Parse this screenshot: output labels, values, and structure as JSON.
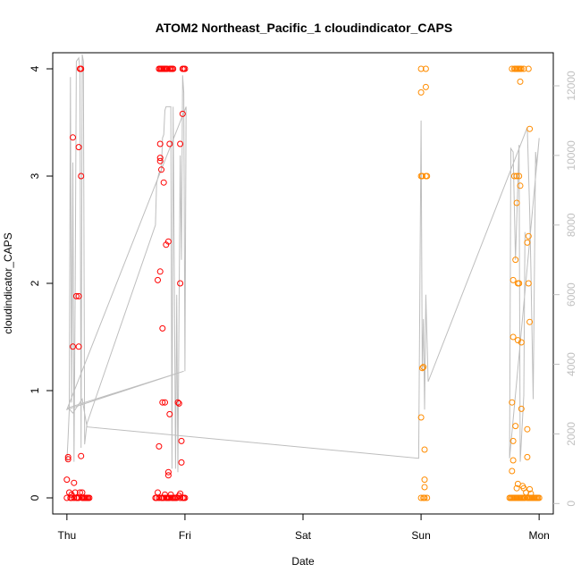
{
  "chart_data": {
    "type": "scatter",
    "title": "ATOM2 Northeast_Pacific_1 cloudindicator_CAPS",
    "xlabel": "Date",
    "ylabel": "cloudindicator_CAPS",
    "x_ticks": [
      "Thu",
      "Fri",
      "Sat",
      "Sun",
      "Mon"
    ],
    "x_range": [
      -0.12,
      4.12
    ],
    "y_ticks": [
      "0",
      "1",
      "2",
      "3",
      "4"
    ],
    "y_range": [
      -0.15,
      4.15
    ],
    "y2_ticks": [
      "0",
      "2000",
      "4000",
      "6000",
      "8000",
      "10000",
      "12000"
    ],
    "y2_range": [
      -300,
      12950
    ],
    "colors": {
      "series_a": "#ff0000",
      "series_b": "#ff8c00",
      "line": "#bebebe",
      "axis": "#000000",
      "right_axis": "#c0c0c0"
    },
    "grid": false,
    "series": [
      {
        "color": "#ff0000",
        "points": [
          [
            0.0,
            0.0
          ],
          [
            0.0,
            0.17
          ],
          [
            0.01,
            0.38
          ],
          [
            0.01,
            0.36
          ],
          [
            0.02,
            0.05
          ],
          [
            0.03,
            0.0
          ],
          [
            0.04,
            0.0
          ],
          [
            0.04,
            0.03
          ],
          [
            0.05,
            3.36
          ],
          [
            0.05,
            1.41
          ],
          [
            0.06,
            0.14
          ],
          [
            0.07,
            0.05
          ],
          [
            0.08,
            1.88
          ],
          [
            0.09,
            0.0
          ],
          [
            0.1,
            0.0
          ],
          [
            0.1,
            1.88
          ],
          [
            0.1,
            3.27
          ],
          [
            0.1,
            1.41
          ],
          [
            0.11,
            4.0
          ],
          [
            0.12,
            4.0
          ],
          [
            0.12,
            0.39
          ],
          [
            0.12,
            3.0
          ],
          [
            0.13,
            0.0
          ],
          [
            0.14,
            0.0
          ],
          [
            0.15,
            0.0
          ],
          [
            0.16,
            0.0
          ],
          [
            0.17,
            0.0
          ],
          [
            0.18,
            0.0
          ],
          [
            0.19,
            0.0
          ],
          [
            0.11,
            0.05
          ],
          [
            0.13,
            0.05
          ],
          [
            0.06,
            0.0
          ],
          [
            0.08,
            0.0
          ],
          [
            0.75,
            0.0
          ],
          [
            0.76,
            0.0
          ],
          [
            0.77,
            2.03
          ],
          [
            0.77,
            0.05
          ],
          [
            0.78,
            4.0
          ],
          [
            0.78,
            0.48
          ],
          [
            0.79,
            2.11
          ],
          [
            0.79,
            3.3
          ],
          [
            0.79,
            3.17
          ],
          [
            0.79,
            3.14
          ],
          [
            0.8,
            3.06
          ],
          [
            0.8,
            0.0
          ],
          [
            0.81,
            0.89
          ],
          [
            0.81,
            1.58
          ],
          [
            0.81,
            0.0
          ],
          [
            0.82,
            4.0
          ],
          [
            0.82,
            0.0
          ],
          [
            0.82,
            2.94
          ],
          [
            0.83,
            0.03
          ],
          [
            0.83,
            0.89
          ],
          [
            0.84,
            2.36
          ],
          [
            0.84,
            0.0
          ],
          [
            0.85,
            0.0
          ],
          [
            0.86,
            0.0
          ],
          [
            0.86,
            2.39
          ],
          [
            0.86,
            0.24
          ],
          [
            0.86,
            0.21
          ],
          [
            0.87,
            0.0
          ],
          [
            0.87,
            3.3
          ],
          [
            0.87,
            0.78
          ],
          [
            0.88,
            0.03
          ],
          [
            0.89,
            0.0
          ],
          [
            0.9,
            0.0
          ],
          [
            0.9,
            4.0
          ],
          [
            0.91,
            0.0
          ],
          [
            0.92,
            0.0
          ],
          [
            0.93,
            0.0
          ],
          [
            0.94,
            0.89
          ],
          [
            0.95,
            0.88
          ],
          [
            0.95,
            0.02
          ],
          [
            0.96,
            2.0
          ],
          [
            0.96,
            0.0
          ],
          [
            0.96,
            3.3
          ],
          [
            0.97,
            0.53
          ],
          [
            0.97,
            0.33
          ],
          [
            0.98,
            0.0
          ],
          [
            0.98,
            3.58
          ],
          [
            0.99,
            4.0
          ],
          [
            0.99,
            0.0
          ],
          [
            1.0,
            0.0
          ],
          [
            1.0,
            4.0
          ],
          [
            0.96,
            0.04
          ],
          [
            0.78,
            0.0
          ],
          [
            0.79,
            4.0
          ],
          [
            0.8,
            4.0
          ],
          [
            0.81,
            4.0
          ],
          [
            0.83,
            4.0
          ],
          [
            0.84,
            4.0
          ],
          [
            0.85,
            4.0
          ],
          [
            0.87,
            4.0
          ],
          [
            0.88,
            4.0
          ],
          [
            0.89,
            4.0
          ],
          [
            0.98,
            4.0
          ]
        ]
      },
      {
        "color": "#ff8c00",
        "points": [
          [
            3.0,
            4.0
          ],
          [
            3.0,
            3.0
          ],
          [
            3.0,
            3.78
          ],
          [
            3.0,
            0.75
          ],
          [
            3.01,
            3.0
          ],
          [
            3.01,
            1.21
          ],
          [
            3.02,
            1.22
          ],
          [
            3.03,
            0.45
          ],
          [
            3.03,
            0.17
          ],
          [
            3.03,
            0.1
          ],
          [
            3.04,
            4.0
          ],
          [
            3.04,
            3.83
          ],
          [
            3.04,
            3.0
          ],
          [
            3.05,
            0.0
          ],
          [
            3.05,
            3.0
          ],
          [
            3.0,
            0.0
          ],
          [
            3.02,
            0.0
          ],
          [
            3.03,
            0.0
          ],
          [
            3.75,
            0.0
          ],
          [
            3.76,
            0.0
          ],
          [
            3.77,
            4.0
          ],
          [
            3.77,
            0.25
          ],
          [
            3.77,
            0.89
          ],
          [
            3.78,
            0.35
          ],
          [
            3.78,
            2.03
          ],
          [
            3.78,
            1.5
          ],
          [
            3.78,
            0.53
          ],
          [
            3.79,
            4.0
          ],
          [
            3.79,
            0.0
          ],
          [
            3.79,
            3.0
          ],
          [
            3.8,
            2.22
          ],
          [
            3.8,
            0.67
          ],
          [
            3.81,
            4.0
          ],
          [
            3.81,
            3.0
          ],
          [
            3.81,
            2.75
          ],
          [
            3.81,
            0.09
          ],
          [
            3.82,
            2.0
          ],
          [
            3.82,
            1.47
          ],
          [
            3.82,
            0.13
          ],
          [
            3.83,
            2.0
          ],
          [
            3.83,
            4.0
          ],
          [
            3.83,
            3.0
          ],
          [
            3.84,
            3.88
          ],
          [
            3.84,
            2.91
          ],
          [
            3.84,
            0.0
          ],
          [
            3.85,
            0.83
          ],
          [
            3.85,
            1.45
          ],
          [
            3.85,
            0.0
          ],
          [
            3.86,
            0.11
          ],
          [
            3.87,
            4.0
          ],
          [
            3.87,
            0.09
          ],
          [
            3.88,
            0.0
          ],
          [
            3.89,
            0.05
          ],
          [
            3.9,
            0.38
          ],
          [
            3.9,
            0.64
          ],
          [
            3.9,
            2.38
          ],
          [
            3.91,
            2.44
          ],
          [
            3.91,
            2.0
          ],
          [
            3.91,
            4.0
          ],
          [
            3.92,
            1.64
          ],
          [
            3.92,
            0.08
          ],
          [
            3.92,
            3.44
          ],
          [
            3.93,
            0.04
          ],
          [
            3.94,
            0.0
          ],
          [
            3.95,
            0.0
          ],
          [
            3.96,
            0.0
          ],
          [
            3.97,
            0.0
          ],
          [
            3.98,
            0.0
          ],
          [
            3.99,
            0.0
          ],
          [
            4.0,
            0.0
          ],
          [
            3.77,
            0.0
          ],
          [
            3.78,
            0.0
          ],
          [
            3.8,
            0.0
          ],
          [
            3.81,
            0.0
          ],
          [
            3.82,
            0.0
          ],
          [
            3.83,
            0.0
          ],
          [
            3.86,
            0.0
          ],
          [
            3.87,
            0.0
          ],
          [
            3.9,
            0.0
          ],
          [
            3.91,
            0.0
          ],
          [
            3.92,
            0.0
          ],
          [
            3.93,
            0.0
          ],
          [
            3.8,
            4.0
          ],
          [
            3.82,
            4.0
          ],
          [
            3.84,
            4.0
          ],
          [
            3.85,
            4.0
          ]
        ]
      }
    ],
    "line_y2": [
      [
        0.0,
        1200
      ],
      [
        0.01,
        1900
      ],
      [
        0.02,
        2700
      ],
      [
        0.03,
        12250
      ],
      [
        0.04,
        2900
      ],
      [
        0.05,
        9800
      ],
      [
        0.06,
        1200
      ],
      [
        0.07,
        6000
      ],
      [
        0.08,
        12700
      ],
      [
        0.1,
        12800
      ],
      [
        0.11,
        12500
      ],
      [
        0.12,
        1600
      ],
      [
        0.13,
        12900
      ],
      [
        0.14,
        12700
      ],
      [
        0.15,
        1700
      ],
      [
        0.17,
        2300
      ],
      [
        0.75,
        8000
      ],
      [
        0.76,
        9200
      ],
      [
        0.78,
        9500
      ],
      [
        0.8,
        9550
      ],
      [
        0.81,
        10500
      ],
      [
        0.82,
        10600
      ],
      [
        0.83,
        11300
      ],
      [
        0.84,
        11400
      ],
      [
        0.86,
        11400
      ],
      [
        0.88,
        11400
      ],
      [
        0.89,
        1000
      ],
      [
        0.9,
        11400
      ],
      [
        0.91,
        6600
      ],
      [
        0.92,
        1000
      ],
      [
        0.93,
        6000
      ],
      [
        0.94,
        900
      ],
      [
        0.95,
        5500
      ],
      [
        0.96,
        10000
      ],
      [
        0.97,
        7000
      ],
      [
        0.98,
        12300
      ],
      [
        0.99,
        11800
      ],
      [
        1.0,
        3800
      ],
      [
        1.01,
        11400
      ],
      [
        0.0,
        2700
      ],
      [
        0.99,
        3800
      ],
      [
        0.01,
        2750
      ],
      [
        0.05,
        2600
      ],
      [
        0.13,
        3000
      ],
      [
        0.17,
        2200
      ],
      [
        2.98,
        1300
      ],
      [
        3.0,
        11000
      ],
      [
        3.01,
        3800
      ],
      [
        3.02,
        5300
      ],
      [
        3.03,
        2700
      ],
      [
        3.04,
        6000
      ],
      [
        3.06,
        3500
      ],
      [
        3.9,
        10800
      ],
      [
        3.92,
        8400
      ],
      [
        3.93,
        6800
      ],
      [
        3.95,
        3000
      ],
      [
        3.97,
        10100
      ],
      [
        3.98,
        9700
      ],
      [
        4.0,
        10500
      ],
      [
        3.75,
        1300
      ],
      [
        3.76,
        10200
      ],
      [
        3.78,
        10100
      ],
      [
        3.8,
        7000
      ],
      [
        3.83,
        10300
      ],
      [
        3.84,
        1200
      ],
      [
        3.87,
        3100
      ],
      [
        3.88,
        7800
      ]
    ]
  }
}
